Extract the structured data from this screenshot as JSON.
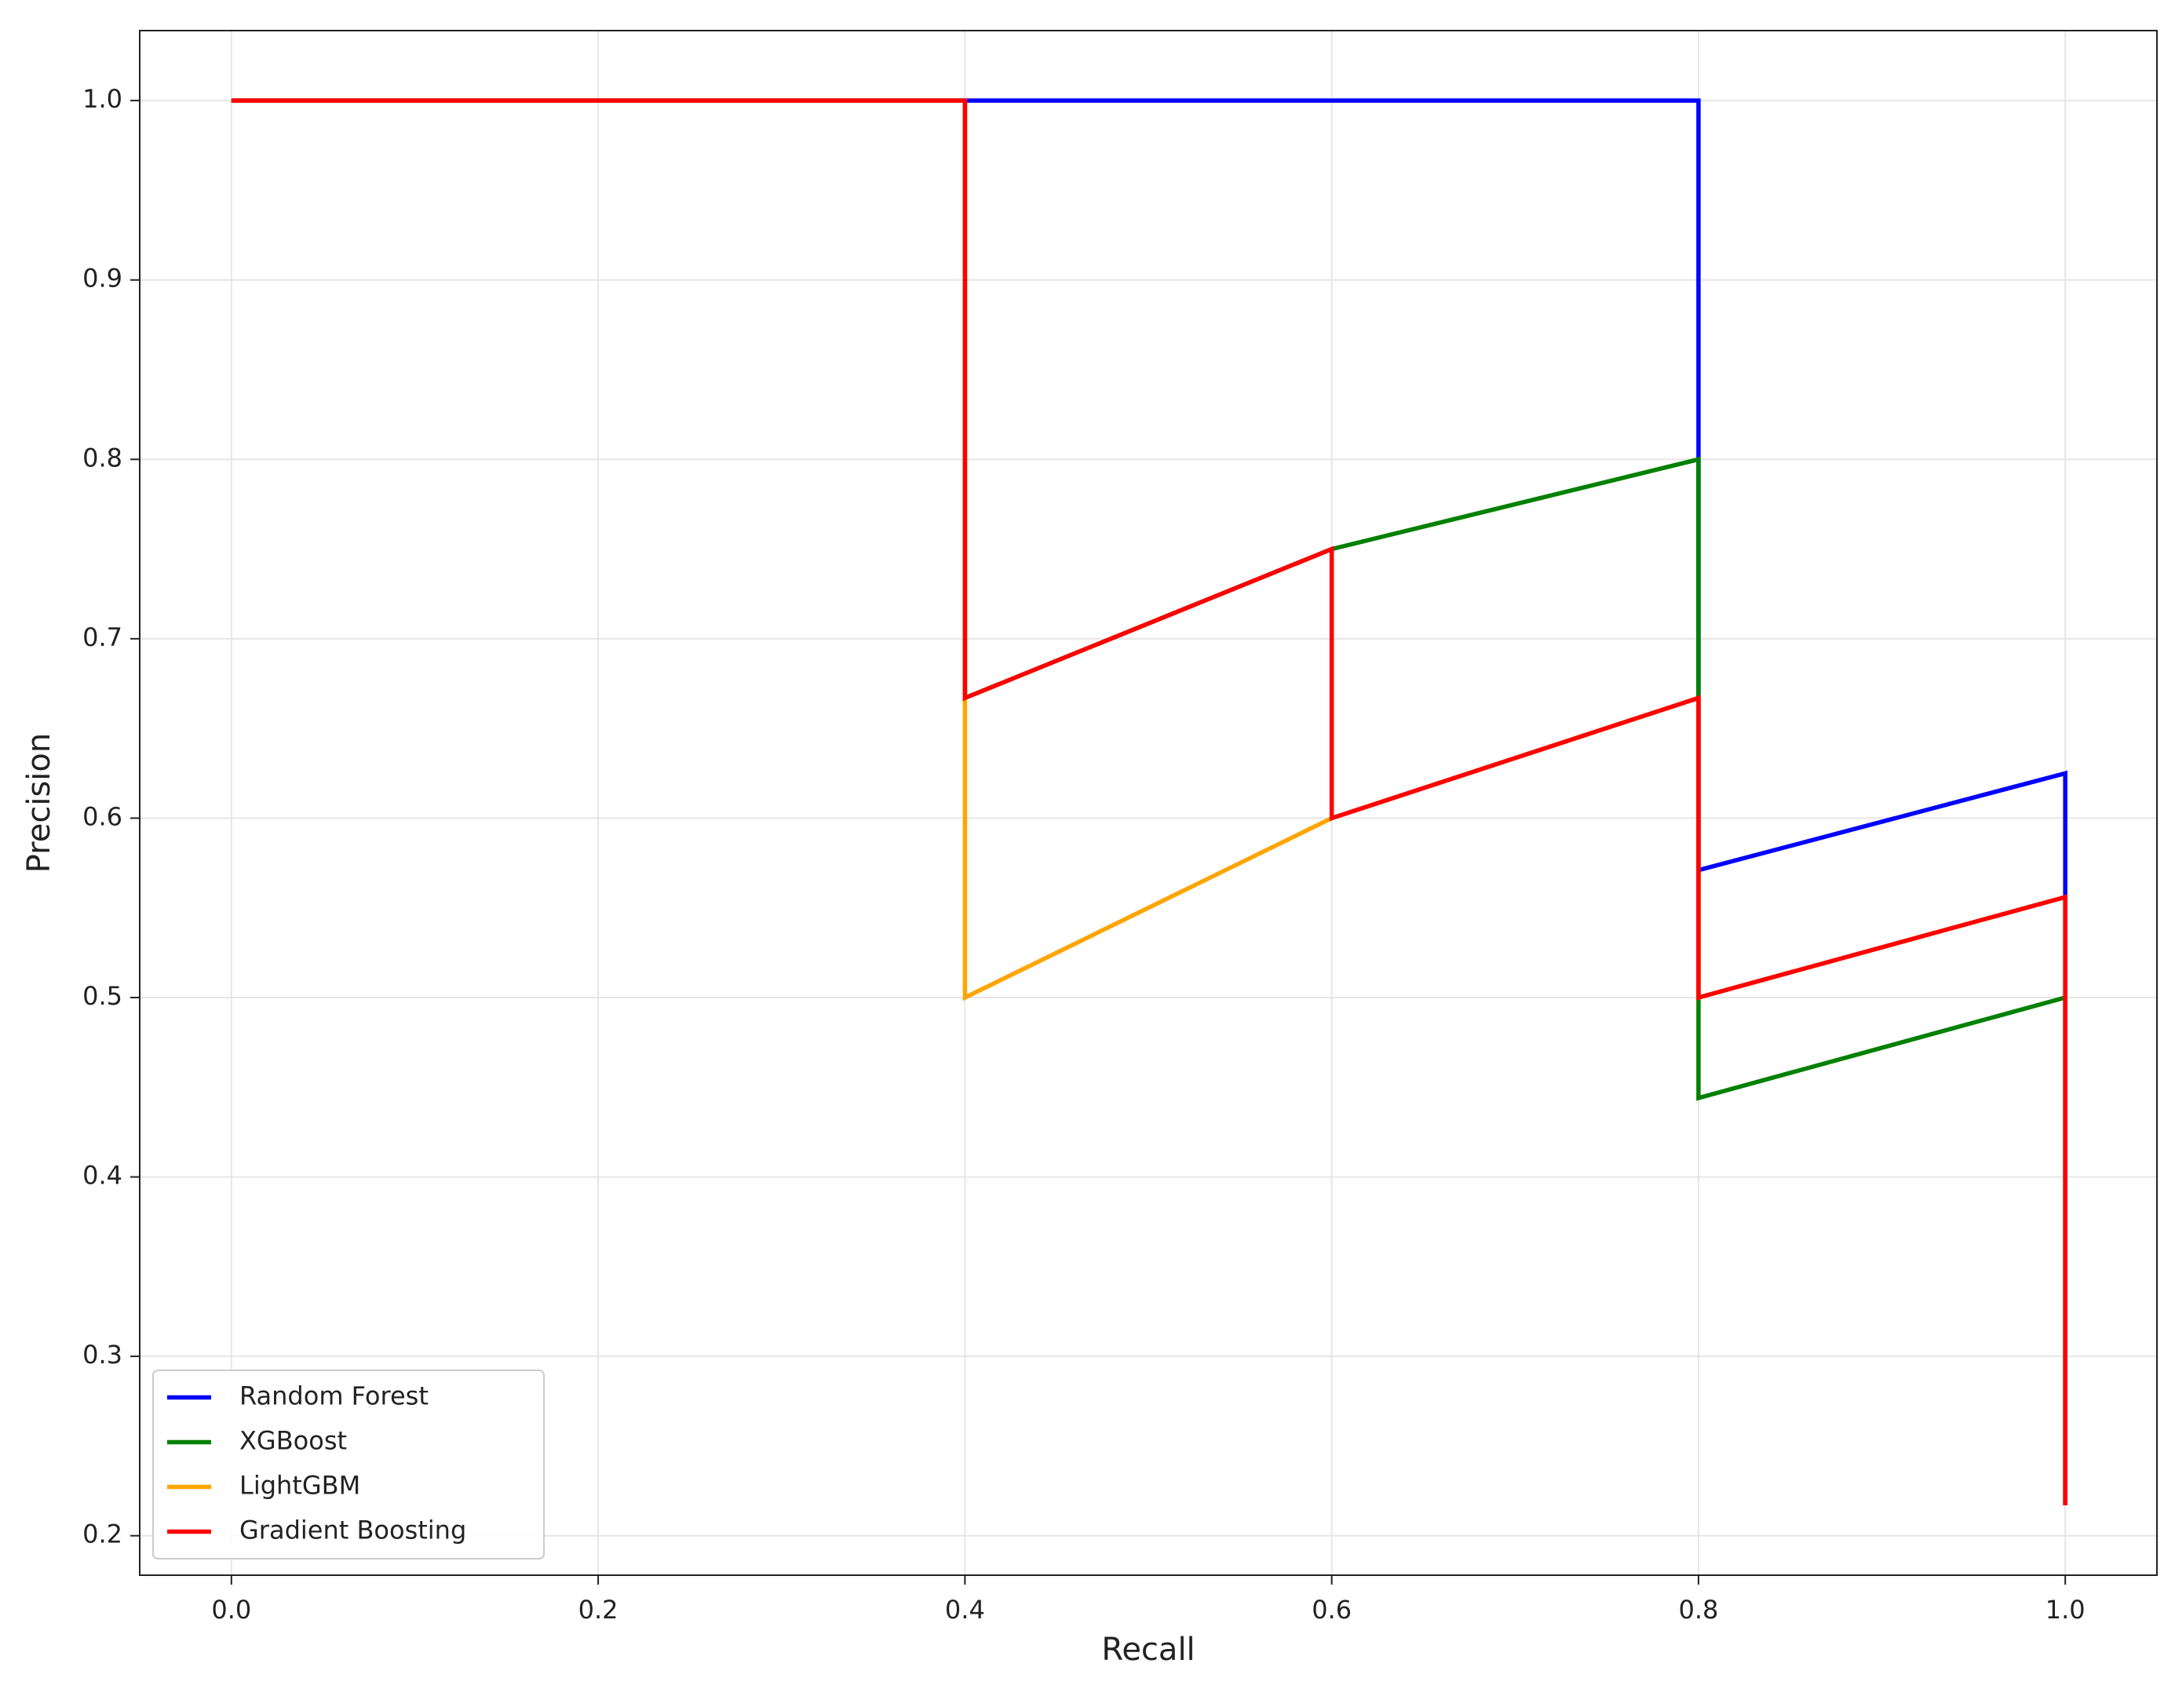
{
  "chart_data": {
    "type": "line",
    "x_label": "Recall",
    "y_label": "Precision",
    "xlim": [
      -0.05,
      1.05
    ],
    "ylim": [
      0.178,
      1.039
    ],
    "xticks": [
      {
        "value": 0,
        "label": "0.0"
      },
      0.2,
      0.4,
      0.6,
      0.8,
      {
        "value": 1,
        "label": "1.0"
      }
    ],
    "yticks": [
      0.2,
      0.3,
      0.4,
      0.5,
      0.6,
      0.7,
      0.8,
      0.9,
      {
        "value": 1,
        "label": "1.0"
      }
    ],
    "grid": true,
    "legend": "lower left",
    "series": [
      {
        "name": "Random Forest",
        "color": "#0000ff",
        "x": [
          0,
          0.8,
          0.8,
          1,
          1
        ],
        "values": [
          1,
          1,
          0.571,
          0.625,
          0.217
        ]
      },
      {
        "name": "XGBoost",
        "color": "#008000",
        "x": [
          0,
          0.4,
          0.4,
          0.6,
          0.8,
          0.8,
          1,
          1
        ],
        "values": [
          1,
          1,
          0.667,
          0.75,
          0.8,
          0.444,
          0.5,
          0.217
        ]
      },
      {
        "name": "LightGBM",
        "color": "#ffa500",
        "x": [
          0,
          0.4,
          0.4,
          0.6,
          0.8,
          0.8,
          1,
          1
        ],
        "values": [
          1,
          1,
          0.5,
          0.6,
          0.667,
          0.5,
          0.556,
          0.217
        ]
      },
      {
        "name": "Gradient Boosting",
        "color": "#ff0000",
        "x": [
          0,
          0.4,
          0.4,
          0.6,
          0.6,
          0.8,
          0.8,
          1,
          1
        ],
        "values": [
          1,
          1,
          0.667,
          0.75,
          0.6,
          0.667,
          0.5,
          0.556,
          0.217
        ]
      }
    ]
  }
}
